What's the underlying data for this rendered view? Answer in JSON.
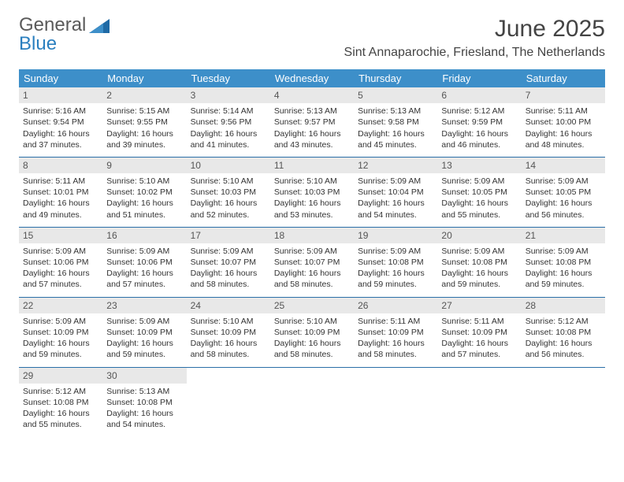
{
  "logo": {
    "line1": "General",
    "line2": "Blue"
  },
  "title": "June 2025",
  "location": "Sint Annaparochie, Friesland, The Netherlands",
  "colors": {
    "header_bg": "#3d8fc9",
    "header_text": "#ffffff",
    "daynum_bg": "#e8e8e8",
    "daynum_text": "#555555",
    "body_text": "#333333",
    "rule": "#2a6fa8",
    "logo_gray": "#5a5a5a",
    "logo_blue": "#2a7fbf",
    "page_bg": "#ffffff"
  },
  "day_headers": [
    "Sunday",
    "Monday",
    "Tuesday",
    "Wednesday",
    "Thursday",
    "Friday",
    "Saturday"
  ],
  "weeks": [
    [
      {
        "n": "1",
        "sr": "5:16 AM",
        "ss": "9:54 PM",
        "dl": "16 hours and 37 minutes."
      },
      {
        "n": "2",
        "sr": "5:15 AM",
        "ss": "9:55 PM",
        "dl": "16 hours and 39 minutes."
      },
      {
        "n": "3",
        "sr": "5:14 AM",
        "ss": "9:56 PM",
        "dl": "16 hours and 41 minutes."
      },
      {
        "n": "4",
        "sr": "5:13 AM",
        "ss": "9:57 PM",
        "dl": "16 hours and 43 minutes."
      },
      {
        "n": "5",
        "sr": "5:13 AM",
        "ss": "9:58 PM",
        "dl": "16 hours and 45 minutes."
      },
      {
        "n": "6",
        "sr": "5:12 AM",
        "ss": "9:59 PM",
        "dl": "16 hours and 46 minutes."
      },
      {
        "n": "7",
        "sr": "5:11 AM",
        "ss": "10:00 PM",
        "dl": "16 hours and 48 minutes."
      }
    ],
    [
      {
        "n": "8",
        "sr": "5:11 AM",
        "ss": "10:01 PM",
        "dl": "16 hours and 49 minutes."
      },
      {
        "n": "9",
        "sr": "5:10 AM",
        "ss": "10:02 PM",
        "dl": "16 hours and 51 minutes."
      },
      {
        "n": "10",
        "sr": "5:10 AM",
        "ss": "10:03 PM",
        "dl": "16 hours and 52 minutes."
      },
      {
        "n": "11",
        "sr": "5:10 AM",
        "ss": "10:03 PM",
        "dl": "16 hours and 53 minutes."
      },
      {
        "n": "12",
        "sr": "5:09 AM",
        "ss": "10:04 PM",
        "dl": "16 hours and 54 minutes."
      },
      {
        "n": "13",
        "sr": "5:09 AM",
        "ss": "10:05 PM",
        "dl": "16 hours and 55 minutes."
      },
      {
        "n": "14",
        "sr": "5:09 AM",
        "ss": "10:05 PM",
        "dl": "16 hours and 56 minutes."
      }
    ],
    [
      {
        "n": "15",
        "sr": "5:09 AM",
        "ss": "10:06 PM",
        "dl": "16 hours and 57 minutes."
      },
      {
        "n": "16",
        "sr": "5:09 AM",
        "ss": "10:06 PM",
        "dl": "16 hours and 57 minutes."
      },
      {
        "n": "17",
        "sr": "5:09 AM",
        "ss": "10:07 PM",
        "dl": "16 hours and 58 minutes."
      },
      {
        "n": "18",
        "sr": "5:09 AM",
        "ss": "10:07 PM",
        "dl": "16 hours and 58 minutes."
      },
      {
        "n": "19",
        "sr": "5:09 AM",
        "ss": "10:08 PM",
        "dl": "16 hours and 59 minutes."
      },
      {
        "n": "20",
        "sr": "5:09 AM",
        "ss": "10:08 PM",
        "dl": "16 hours and 59 minutes."
      },
      {
        "n": "21",
        "sr": "5:09 AM",
        "ss": "10:08 PM",
        "dl": "16 hours and 59 minutes."
      }
    ],
    [
      {
        "n": "22",
        "sr": "5:09 AM",
        "ss": "10:09 PM",
        "dl": "16 hours and 59 minutes."
      },
      {
        "n": "23",
        "sr": "5:09 AM",
        "ss": "10:09 PM",
        "dl": "16 hours and 59 minutes."
      },
      {
        "n": "24",
        "sr": "5:10 AM",
        "ss": "10:09 PM",
        "dl": "16 hours and 58 minutes."
      },
      {
        "n": "25",
        "sr": "5:10 AM",
        "ss": "10:09 PM",
        "dl": "16 hours and 58 minutes."
      },
      {
        "n": "26",
        "sr": "5:11 AM",
        "ss": "10:09 PM",
        "dl": "16 hours and 58 minutes."
      },
      {
        "n": "27",
        "sr": "5:11 AM",
        "ss": "10:09 PM",
        "dl": "16 hours and 57 minutes."
      },
      {
        "n": "28",
        "sr": "5:12 AM",
        "ss": "10:08 PM",
        "dl": "16 hours and 56 minutes."
      }
    ],
    [
      {
        "n": "29",
        "sr": "5:12 AM",
        "ss": "10:08 PM",
        "dl": "16 hours and 55 minutes."
      },
      {
        "n": "30",
        "sr": "5:13 AM",
        "ss": "10:08 PM",
        "dl": "16 hours and 54 minutes."
      },
      null,
      null,
      null,
      null,
      null
    ]
  ],
  "labels": {
    "sunrise": "Sunrise: ",
    "sunset": "Sunset: ",
    "daylight": "Daylight: "
  }
}
